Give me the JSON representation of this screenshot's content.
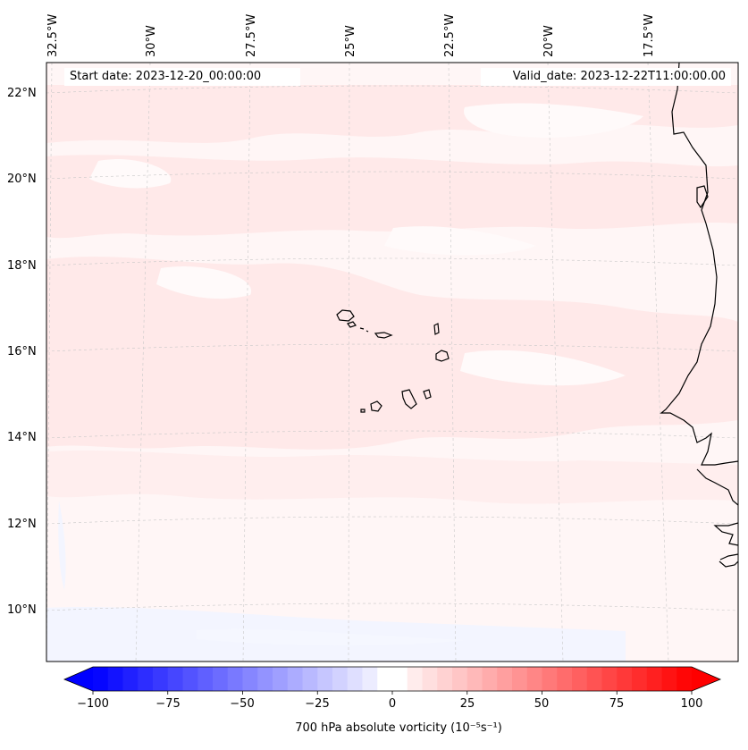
{
  "map": {
    "start_date": "Start date: 2023-12-20_00:00:00",
    "valid_date": "Valid_date: 2023-12-22T11:00:00.00",
    "lon_labels": [
      "32.5°W",
      "30°W",
      "27.5°W",
      "25°W",
      "22.5°W",
      "20°W",
      "17.5°W"
    ],
    "lat_labels": [
      "22°N",
      "20°N",
      "18°N",
      "16°N",
      "14°N",
      "12°N",
      "10°N"
    ]
  },
  "colorbar": {
    "ticks": [
      "−100",
      "−75",
      "−50",
      "−25",
      "0",
      "25",
      "50",
      "75",
      "100"
    ],
    "label": "700 hPa absolute vorticity (10⁻⁵s⁻¹)",
    "min": -100,
    "max": 100,
    "negative_color": "#0000ff",
    "positive_color": "#ff0000"
  },
  "colors": {
    "background_field": "#fff6f6",
    "pink_band": "#ffe7e7",
    "light_blue": "#f3f5ff",
    "coastline": "#000000"
  }
}
